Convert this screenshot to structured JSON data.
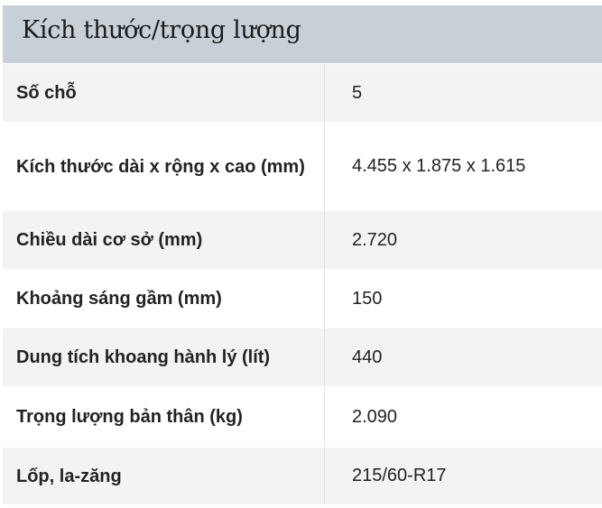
{
  "table": {
    "title": "Kích thước/trọng lượng",
    "rows": [
      {
        "label": "Số chỗ",
        "value": "5"
      },
      {
        "label": "Kích thước dài x rộng x cao (mm)",
        "value": "4.455 x 1.875 x 1.615"
      },
      {
        "label": "Chiều dài cơ sở (mm)",
        "value": "2.720"
      },
      {
        "label": "Khoảng sáng gầm (mm)",
        "value": "150"
      },
      {
        "label": "Dung tích khoang hành lý (lít)",
        "value": "440"
      },
      {
        "label": "Trọng lượng bản thân (kg)",
        "value": "2.090"
      },
      {
        "label": "Lốp, la-zăng",
        "value": "215/60-R17"
      }
    ]
  }
}
